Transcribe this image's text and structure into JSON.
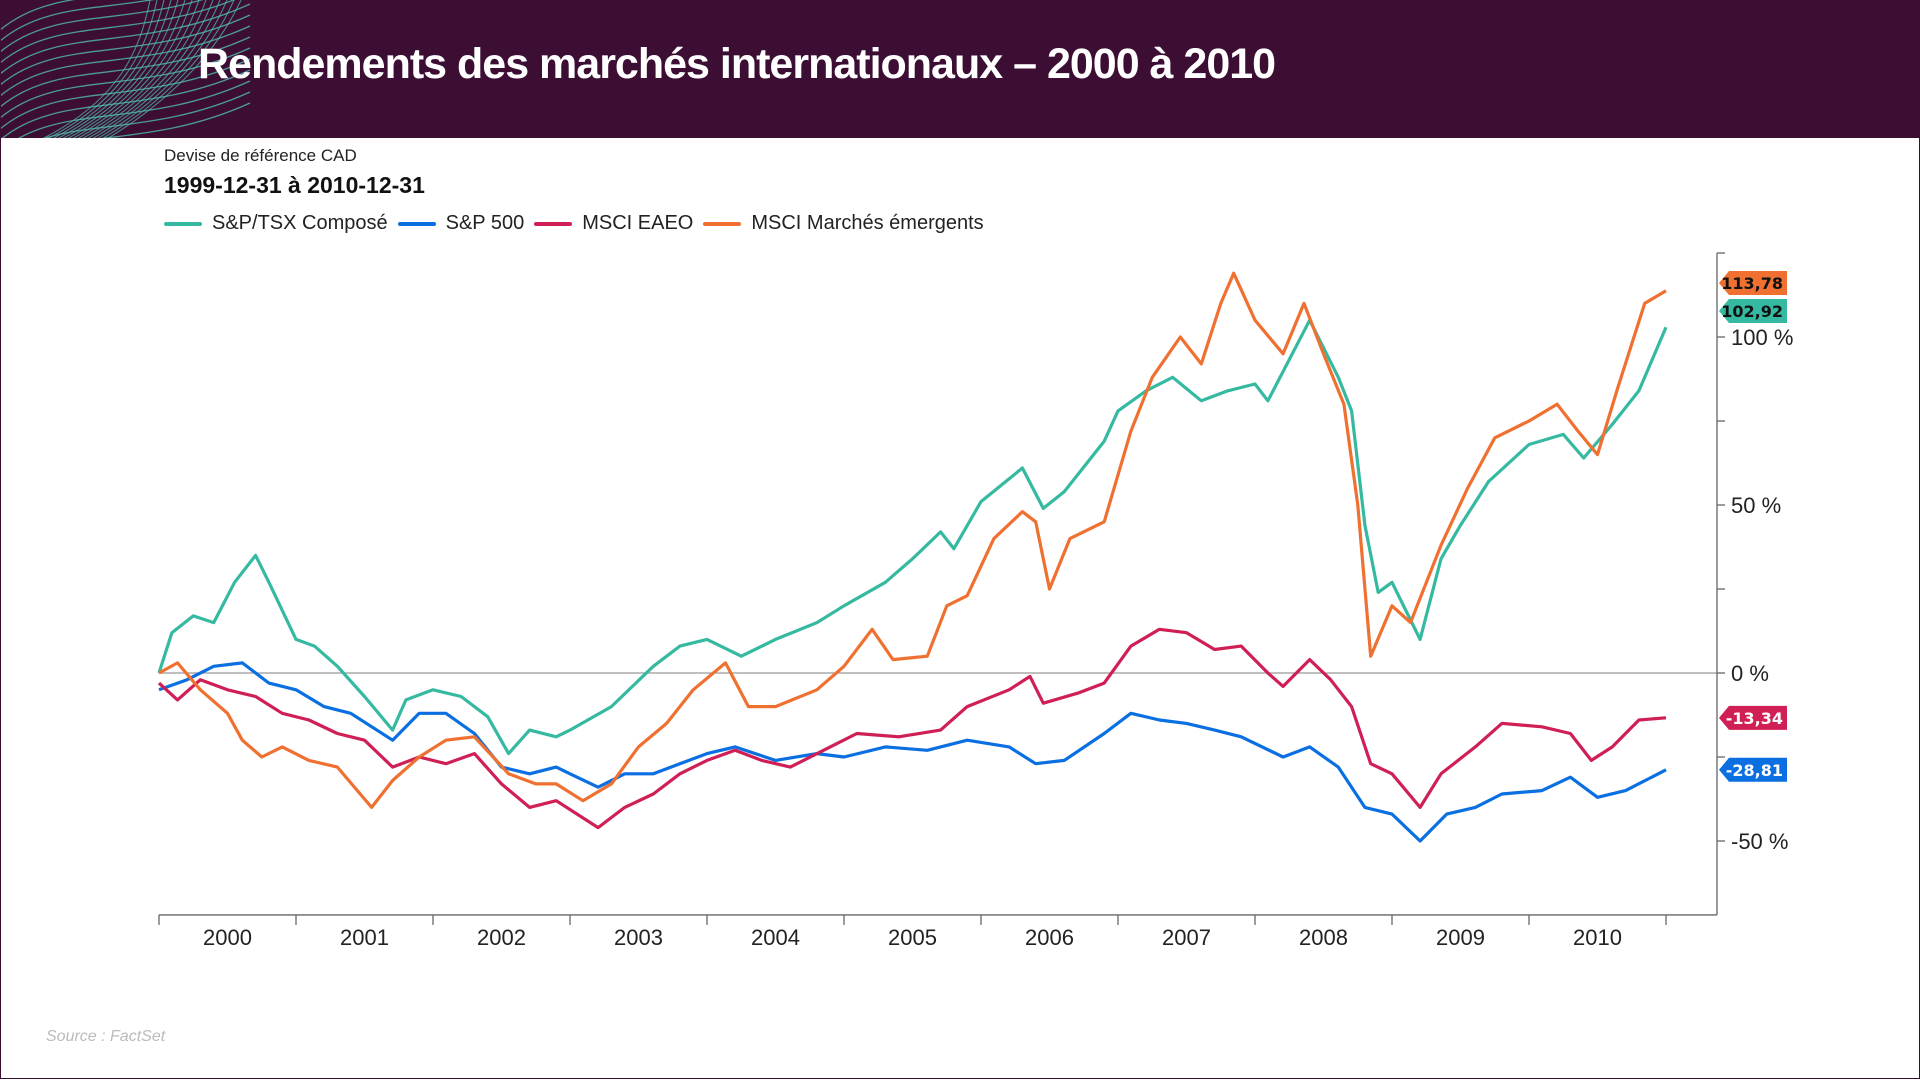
{
  "header": {
    "title": "Rendements des marchés internationaux – 2000 à 2010"
  },
  "subtitle": "Devise de référence CAD",
  "date_range": "1999-12-31 à 2010-12-31",
  "source": "Source : FactSet",
  "colors": {
    "header_bg": "#3d0e33",
    "decoration": "#4fc1b4"
  },
  "chart_data": {
    "type": "line",
    "title": "",
    "xlabel": "",
    "ylabel": "",
    "x_ticks": [
      "2000",
      "2001",
      "2002",
      "2003",
      "2004",
      "2005",
      "2006",
      "2007",
      "2008",
      "2009",
      "2010"
    ],
    "y_ticks": [
      {
        "value": -50,
        "label": "-50 %"
      },
      {
        "value": 0,
        "label": "0 %"
      },
      {
        "value": 50,
        "label": "50 %"
      },
      {
        "value": 100,
        "label": "100 %"
      }
    ],
    "ylim": [
      -72,
      125
    ],
    "xlim": [
      "1999-12-31",
      "2010-12-31"
    ],
    "y_axis_position": "right",
    "zero_line": true,
    "grid": false,
    "legend_position": "top-left",
    "series": [
      {
        "name": "S&P/TSX Composé",
        "color": "#35b9a0",
        "label_color": "#111",
        "end_label": "102,92",
        "points": [
          [
            "1999-12-31",
            0
          ],
          [
            "2000-02-05",
            12
          ],
          [
            "2000-04-01",
            17
          ],
          [
            "2000-05-25",
            15
          ],
          [
            "2000-07-20",
            27
          ],
          [
            "2000-09-15",
            35
          ],
          [
            "2000-10-20",
            27
          ],
          [
            "2001-01-01",
            10
          ],
          [
            "2001-02-20",
            8
          ],
          [
            "2001-04-20",
            2
          ],
          [
            "2001-07-01",
            -7
          ],
          [
            "2001-09-15",
            -17
          ],
          [
            "2001-10-20",
            -8
          ],
          [
            "2002-01-01",
            -5
          ],
          [
            "2002-03-15",
            -7
          ],
          [
            "2002-05-25",
            -13
          ],
          [
            "2002-07-20",
            -24
          ],
          [
            "2002-09-15",
            -17
          ],
          [
            "2002-11-25",
            -19
          ],
          [
            "2003-01-01",
            -17
          ],
          [
            "2003-04-20",
            -10
          ],
          [
            "2003-08-10",
            2
          ],
          [
            "2003-10-20",
            8
          ],
          [
            "2004-01-01",
            10
          ],
          [
            "2004-04-01",
            5
          ],
          [
            "2004-07-01",
            10
          ],
          [
            "2004-10-20",
            15
          ],
          [
            "2005-01-01",
            20
          ],
          [
            "2005-04-20",
            27
          ],
          [
            "2005-07-01",
            34
          ],
          [
            "2005-09-15",
            42
          ],
          [
            "2005-10-20",
            37
          ],
          [
            "2006-01-01",
            51
          ],
          [
            "2006-04-20",
            61
          ],
          [
            "2006-06-15",
            49
          ],
          [
            "2006-08-10",
            54
          ],
          [
            "2006-11-25",
            69
          ],
          [
            "2007-01-01",
            78
          ],
          [
            "2007-03-15",
            84
          ],
          [
            "2007-05-25",
            88
          ],
          [
            "2007-08-10",
            81
          ],
          [
            "2007-10-20",
            84
          ],
          [
            "2008-01-01",
            86
          ],
          [
            "2008-02-05",
            81
          ],
          [
            "2008-05-25",
            105
          ],
          [
            "2008-08-10",
            88
          ],
          [
            "2008-09-15",
            78
          ],
          [
            "2008-10-20",
            44
          ],
          [
            "2008-11-25",
            24
          ],
          [
            "2009-01-01",
            27
          ],
          [
            "2009-03-15",
            10
          ],
          [
            "2009-05-10",
            34
          ],
          [
            "2009-07-01",
            44
          ],
          [
            "2009-09-15",
            57
          ],
          [
            "2010-01-01",
            68
          ],
          [
            "2010-04-01",
            71
          ],
          [
            "2010-05-25",
            64
          ],
          [
            "2010-08-10",
            74
          ],
          [
            "2010-10-20",
            84
          ],
          [
            "2010-12-31",
            102.92
          ]
        ]
      },
      {
        "name": "S&P 500",
        "color": "#0a6fe0",
        "label_color": "#fff",
        "end_label": "-28,81",
        "points": [
          [
            "1999-12-31",
            -5
          ],
          [
            "2000-03-15",
            -2
          ],
          [
            "2000-05-25",
            2
          ],
          [
            "2000-08-10",
            3
          ],
          [
            "2000-10-20",
            -3
          ],
          [
            "2001-01-01",
            -5
          ],
          [
            "2001-03-15",
            -10
          ],
          [
            "2001-05-25",
            -12
          ],
          [
            "2001-09-15",
            -20
          ],
          [
            "2001-11-25",
            -12
          ],
          [
            "2002-02-05",
            -12
          ],
          [
            "2002-04-20",
            -18
          ],
          [
            "2002-07-01",
            -28
          ],
          [
            "2002-09-15",
            -30
          ],
          [
            "2002-11-25",
            -28
          ],
          [
            "2003-01-01",
            -30
          ],
          [
            "2003-03-15",
            -34
          ],
          [
            "2003-05-25",
            -30
          ],
          [
            "2003-08-10",
            -30
          ],
          [
            "2003-10-20",
            -27
          ],
          [
            "2004-01-01",
            -24
          ],
          [
            "2004-03-15",
            -22
          ],
          [
            "2004-07-01",
            -26
          ],
          [
            "2004-10-20",
            -24
          ],
          [
            "2005-01-01",
            -25
          ],
          [
            "2005-04-20",
            -22
          ],
          [
            "2005-08-10",
            -23
          ],
          [
            "2005-11-25",
            -20
          ],
          [
            "2006-03-15",
            -22
          ],
          [
            "2006-05-25",
            -27
          ],
          [
            "2006-08-10",
            -26
          ],
          [
            "2006-11-25",
            -18
          ],
          [
            "2007-02-05",
            -12
          ],
          [
            "2007-04-20",
            -14
          ],
          [
            "2007-07-01",
            -15
          ],
          [
            "2007-09-15",
            -17
          ],
          [
            "2007-11-25",
            -19
          ],
          [
            "2008-03-15",
            -25
          ],
          [
            "2008-05-25",
            -22
          ],
          [
            "2008-08-10",
            -28
          ],
          [
            "2008-10-20",
            -40
          ],
          [
            "2009-01-01",
            -42
          ],
          [
            "2009-03-15",
            -50
          ],
          [
            "2009-05-25",
            -42
          ],
          [
            "2009-08-10",
            -40
          ],
          [
            "2009-10-20",
            -36
          ],
          [
            "2010-02-05",
            -35
          ],
          [
            "2010-04-20",
            -31
          ],
          [
            "2010-07-01",
            -37
          ],
          [
            "2010-09-15",
            -35
          ],
          [
            "2010-12-31",
            -28.81
          ]
        ]
      },
      {
        "name": "MSCI EAEO",
        "color": "#d01f55",
        "label_color": "#fff",
        "end_label": "-13,34",
        "points": [
          [
            "1999-12-31",
            -3
          ],
          [
            "2000-02-20",
            -8
          ],
          [
            "2000-04-20",
            -2
          ],
          [
            "2000-07-01",
            -5
          ],
          [
            "2000-09-15",
            -7
          ],
          [
            "2000-11-25",
            -12
          ],
          [
            "2001-02-05",
            -14
          ],
          [
            "2001-04-20",
            -18
          ],
          [
            "2001-07-01",
            -20
          ],
          [
            "2001-09-15",
            -28
          ],
          [
            "2001-11-25",
            -25
          ],
          [
            "2002-02-05",
            -27
          ],
          [
            "2002-04-20",
            -24
          ],
          [
            "2002-07-01",
            -33
          ],
          [
            "2002-09-15",
            -40
          ],
          [
            "2002-11-25",
            -38
          ],
          [
            "2003-03-15",
            -46
          ],
          [
            "2003-05-25",
            -40
          ],
          [
            "2003-08-10",
            -36
          ],
          [
            "2003-10-20",
            -30
          ],
          [
            "2004-01-01",
            -26
          ],
          [
            "2004-03-15",
            -23
          ],
          [
            "2004-05-25",
            -26
          ],
          [
            "2004-08-10",
            -28
          ],
          [
            "2004-11-25",
            -22
          ],
          [
            "2005-02-05",
            -18
          ],
          [
            "2005-05-25",
            -19
          ],
          [
            "2005-09-15",
            -17
          ],
          [
            "2005-11-25",
            -10
          ],
          [
            "2006-03-15",
            -5
          ],
          [
            "2006-05-10",
            -1
          ],
          [
            "2006-06-15",
            -9
          ],
          [
            "2006-09-15",
            -6
          ],
          [
            "2006-11-25",
            -3
          ],
          [
            "2007-02-05",
            8
          ],
          [
            "2007-04-20",
            13
          ],
          [
            "2007-07-01",
            12
          ],
          [
            "2007-09-15",
            7
          ],
          [
            "2007-11-25",
            8
          ],
          [
            "2008-02-05",
            0
          ],
          [
            "2008-03-15",
            -4
          ],
          [
            "2008-05-25",
            4
          ],
          [
            "2008-07-20",
            -2
          ],
          [
            "2008-09-15",
            -10
          ],
          [
            "2008-11-05",
            -27
          ],
          [
            "2009-01-01",
            -30
          ],
          [
            "2009-03-15",
            -40
          ],
          [
            "2009-05-10",
            -30
          ],
          [
            "2009-08-10",
            -22
          ],
          [
            "2009-10-20",
            -15
          ],
          [
            "2010-02-05",
            -16
          ],
          [
            "2010-04-20",
            -18
          ],
          [
            "2010-06-15",
            -26
          ],
          [
            "2010-08-10",
            -22
          ],
          [
            "2010-10-20",
            -14
          ],
          [
            "2010-12-31",
            -13.34
          ]
        ]
      },
      {
        "name": "MSCI Marchés émergents",
        "color": "#ef7030",
        "label_color": "#111",
        "end_label": "113,78",
        "points": [
          [
            "1999-12-31",
            0
          ],
          [
            "2000-02-20",
            3
          ],
          [
            "2000-04-20",
            -5
          ],
          [
            "2000-07-01",
            -12
          ],
          [
            "2000-08-10",
            -20
          ],
          [
            "2000-10-01",
            -25
          ],
          [
            "2000-11-25",
            -22
          ],
          [
            "2001-02-05",
            -26
          ],
          [
            "2001-04-20",
            -28
          ],
          [
            "2001-07-20",
            -40
          ],
          [
            "2001-09-15",
            -32
          ],
          [
            "2001-11-25",
            -25
          ],
          [
            "2002-02-05",
            -20
          ],
          [
            "2002-04-20",
            -19
          ],
          [
            "2002-07-20",
            -30
          ],
          [
            "2002-10-01",
            -33
          ],
          [
            "2002-11-25",
            -33
          ],
          [
            "2003-02-05",
            -38
          ],
          [
            "2003-04-20",
            -33
          ],
          [
            "2003-07-01",
            -22
          ],
          [
            "2003-09-15",
            -15
          ],
          [
            "2003-11-25",
            -5
          ],
          [
            "2004-02-20",
            3
          ],
          [
            "2004-04-20",
            -10
          ],
          [
            "2004-07-01",
            -10
          ],
          [
            "2004-10-20",
            -5
          ],
          [
            "2005-01-01",
            2
          ],
          [
            "2005-03-15",
            13
          ],
          [
            "2005-05-10",
            4
          ],
          [
            "2005-08-10",
            5
          ],
          [
            "2005-10-01",
            20
          ],
          [
            "2005-11-25",
            23
          ],
          [
            "2006-02-05",
            40
          ],
          [
            "2006-04-20",
            48
          ],
          [
            "2006-05-25",
            45
          ],
          [
            "2006-07-01",
            25
          ],
          [
            "2006-08-25",
            40
          ],
          [
            "2006-11-25",
            45
          ],
          [
            "2007-02-05",
            72
          ],
          [
            "2007-04-01",
            88
          ],
          [
            "2007-06-15",
            100
          ],
          [
            "2007-08-10",
            92
          ],
          [
            "2007-10-01",
            110
          ],
          [
            "2007-11-05",
            119
          ],
          [
            "2008-01-01",
            105
          ],
          [
            "2008-03-15",
            95
          ],
          [
            "2008-05-10",
            110
          ],
          [
            "2008-07-01",
            95
          ],
          [
            "2008-08-25",
            80
          ],
          [
            "2008-10-01",
            50
          ],
          [
            "2008-11-05",
            5
          ],
          [
            "2009-01-01",
            20
          ],
          [
            "2009-02-20",
            15
          ],
          [
            "2009-05-10",
            38
          ],
          [
            "2009-07-20",
            55
          ],
          [
            "2009-10-01",
            70
          ],
          [
            "2010-01-01",
            75
          ],
          [
            "2010-03-15",
            80
          ],
          [
            "2010-05-10",
            72
          ],
          [
            "2010-07-01",
            65
          ],
          [
            "2010-08-25",
            85
          ],
          [
            "2010-11-05",
            110
          ],
          [
            "2010-12-31",
            113.78
          ]
        ]
      }
    ]
  }
}
